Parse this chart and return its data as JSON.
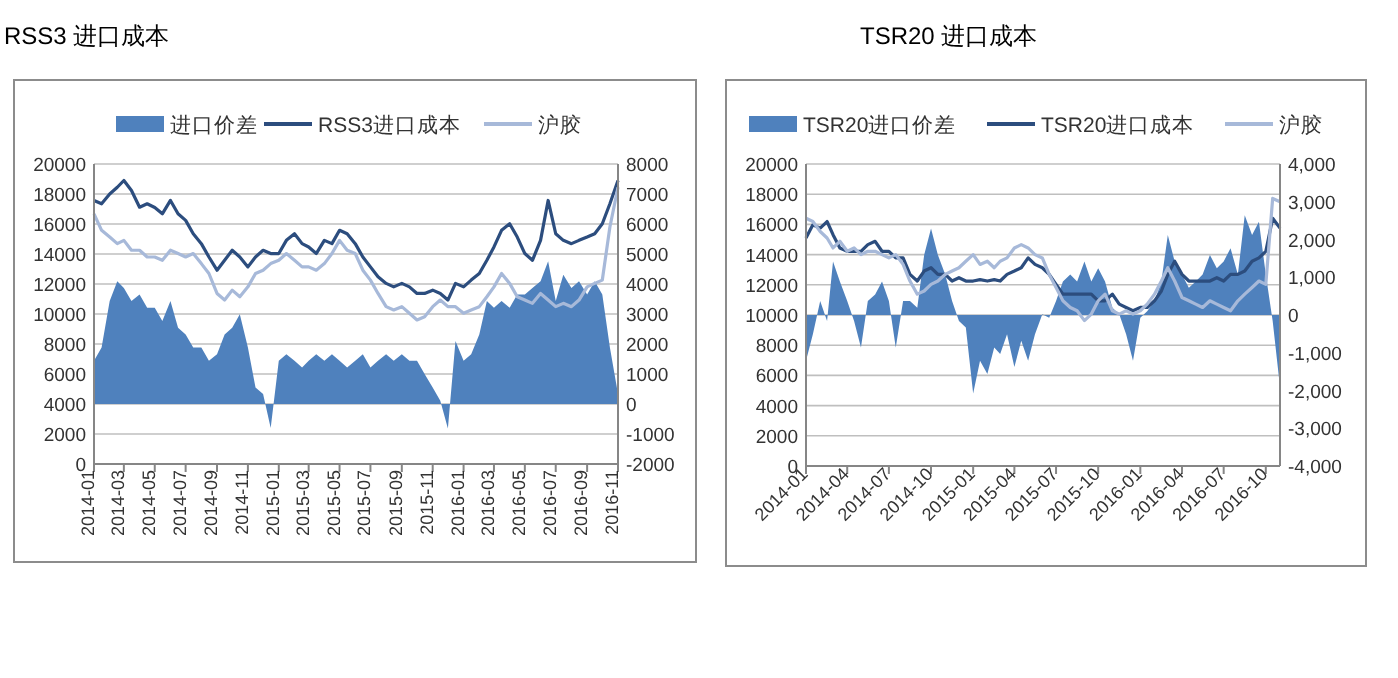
{
  "chart_data": [
    {
      "type": "line",
      "title": "RSS3 进口成本",
      "legend": "top",
      "grid": "y",
      "marker": "none",
      "line_style": "solid",
      "x": [
        "2014-01-01",
        "2014-01-16",
        "2014-02-01",
        "2014-02-16",
        "2014-03-01",
        "2014-03-16",
        "2014-04-01",
        "2014-04-16",
        "2014-05-01",
        "2014-05-16",
        "2014-06-01",
        "2014-06-16",
        "2014-07-01",
        "2014-07-16",
        "2014-08-01",
        "2014-08-16",
        "2014-09-01",
        "2014-09-16",
        "2014-10-01",
        "2014-10-16",
        "2014-11-01",
        "2014-11-16",
        "2014-12-01",
        "2014-12-16",
        "2015-01-01",
        "2015-01-16",
        "2015-02-01",
        "2015-02-16",
        "2015-03-01",
        "2015-03-16",
        "2015-04-01",
        "2015-04-16",
        "2015-05-01",
        "2015-05-16",
        "2015-06-01",
        "2015-06-16",
        "2015-07-01",
        "2015-07-16",
        "2015-08-01",
        "2015-08-16",
        "2015-09-01",
        "2015-09-16",
        "2015-10-01",
        "2015-10-16",
        "2015-11-01",
        "2015-11-16",
        "2015-12-01",
        "2015-12-16",
        "2016-01-01",
        "2016-01-16",
        "2016-02-01",
        "2016-02-16",
        "2016-03-01",
        "2016-03-16",
        "2016-04-01",
        "2016-04-16",
        "2016-05-01",
        "2016-05-16",
        "2016-06-01",
        "2016-06-16",
        "2016-07-01",
        "2016-07-16",
        "2016-08-01",
        "2016-08-16",
        "2016-09-01",
        "2016-09-16",
        "2016-10-01",
        "2016-10-16",
        "2016-11-01"
      ],
      "xlim": [
        "2014-01-01",
        "2016-11-01"
      ],
      "xticks": [
        "2014-01",
        "2014-03",
        "2014-05",
        "2014-07",
        "2014-09",
        "2014-11",
        "2015-01",
        "2015-03",
        "2015-05",
        "2015-07",
        "2015-09",
        "2015-11",
        "2016-01",
        "2016-03",
        "2016-05",
        "2016-07",
        "2016-09",
        "2016-11"
      ],
      "ylim": [
        0,
        20000
      ],
      "yticks": [
        0,
        2000,
        4000,
        6000,
        8000,
        10000,
        12000,
        14000,
        16000,
        18000,
        20000
      ],
      "y2lim": [
        -2000,
        8000
      ],
      "y2ticks": [
        -2000,
        -1000,
        0,
        1000,
        2000,
        3000,
        4000,
        5000,
        6000,
        7000,
        8000
      ],
      "series": [
        {
          "name": "进口价差",
          "type": "area",
          "axis": "y2",
          "color": "#4f81bd",
          "values": [
            1440,
            1880,
            3430,
            4090,
            3870,
            3430,
            3650,
            3210,
            3210,
            2770,
            3430,
            2540,
            2320,
            1880,
            1880,
            1440,
            1660,
            2320,
            2540,
            2990,
            1880,
            550,
            330,
            -800,
            1440,
            1660,
            1440,
            1220,
            1440,
            1660,
            1440,
            1660,
            1440,
            1220,
            1440,
            1660,
            1220,
            1440,
            1660,
            1440,
            1660,
            1440,
            1440,
            1000,
            550,
            110,
            -820,
            2100,
            1440,
            1660,
            2320,
            3430,
            3210,
            3430,
            3210,
            3650,
            3650,
            3870,
            4090,
            4760,
            3430,
            4310,
            3870,
            4090,
            3650,
            4090,
            3650,
            1880,
            330
          ]
        },
        {
          "name": "RSS3进口成本",
          "color": "#2c4d7e",
          "values": [
            17570,
            17350,
            18000,
            18450,
            18900,
            18230,
            17120,
            17350,
            17100,
            16680,
            17570,
            16680,
            16240,
            15350,
            14690,
            13800,
            12920,
            13580,
            14250,
            13800,
            13140,
            13800,
            14250,
            14030,
            14030,
            14910,
            15350,
            14690,
            14470,
            14030,
            14910,
            14690,
            15580,
            15350,
            14690,
            13800,
            13140,
            12480,
            12040,
            11810,
            12040,
            11810,
            11370,
            11370,
            11590,
            11370,
            10930,
            12040,
            11810,
            12260,
            12700,
            13580,
            14470,
            15580,
            16020,
            15130,
            14030,
            13580,
            14910,
            17570,
            15350,
            14910,
            14690,
            14910,
            15130,
            15350,
            16020,
            17350,
            18900
          ]
        },
        {
          "name": "沪胶",
          "color": "#a7b9d9",
          "values": [
            16680,
            15580,
            15130,
            14690,
            14910,
            14250,
            14250,
            13800,
            13800,
            13580,
            14250,
            14030,
            13800,
            14030,
            13360,
            12700,
            11370,
            10930,
            11590,
            11150,
            11810,
            12700,
            12920,
            13360,
            13580,
            14030,
            13580,
            13140,
            13140,
            12920,
            13360,
            14030,
            14910,
            14250,
            14030,
            12920,
            12260,
            11370,
            10490,
            10270,
            10490,
            10050,
            9600,
            9820,
            10490,
            10930,
            10490,
            10490,
            10050,
            10270,
            10490,
            11150,
            11810,
            12700,
            12040,
            11150,
            10930,
            10710,
            11370,
            10930,
            10490,
            10710,
            10490,
            10930,
            11810,
            12040,
            12260,
            15800,
            18450
          ]
        }
      ]
    },
    {
      "type": "line",
      "title": "TSR20 进口成本",
      "legend": "top",
      "grid": "y",
      "marker": "none",
      "line_style": "solid",
      "x": [
        "2014-01-01",
        "2014-01-16",
        "2014-02-01",
        "2014-02-16",
        "2014-03-01",
        "2014-03-16",
        "2014-04-01",
        "2014-04-16",
        "2014-05-01",
        "2014-05-16",
        "2014-06-01",
        "2014-06-16",
        "2014-07-01",
        "2014-07-16",
        "2014-08-01",
        "2014-08-16",
        "2014-09-01",
        "2014-09-16",
        "2014-10-01",
        "2014-10-16",
        "2014-11-01",
        "2014-11-16",
        "2014-12-01",
        "2014-12-16",
        "2015-01-01",
        "2015-01-16",
        "2015-02-01",
        "2015-02-16",
        "2015-03-01",
        "2015-03-16",
        "2015-04-01",
        "2015-04-16",
        "2015-05-01",
        "2015-05-16",
        "2015-06-01",
        "2015-06-16",
        "2015-07-01",
        "2015-07-16",
        "2015-08-01",
        "2015-08-16",
        "2015-09-01",
        "2015-09-16",
        "2015-10-01",
        "2015-10-16",
        "2015-11-01",
        "2015-11-16",
        "2015-12-01",
        "2015-12-16",
        "2016-01-01",
        "2016-01-16",
        "2016-02-01",
        "2016-02-16",
        "2016-03-01",
        "2016-03-16",
        "2016-04-01",
        "2016-04-16",
        "2016-05-01",
        "2016-05-16",
        "2016-06-01",
        "2016-06-16",
        "2016-07-01",
        "2016-07-16",
        "2016-08-01",
        "2016-08-16",
        "2016-09-01",
        "2016-09-16",
        "2016-10-01",
        "2016-10-16",
        "2016-11-01"
      ],
      "xlim": [
        "2014-01-01",
        "2016-11-01"
      ],
      "xticks": [
        "2014-01",
        "2014-04",
        "2014-07",
        "2014-10",
        "2015-01",
        "2015-04",
        "2015-07",
        "2015-10",
        "2016-01",
        "2016-04",
        "2016-07",
        "2016-10"
      ],
      "ylim": [
        0,
        20000
      ],
      "yticks": [
        0,
        2000,
        4000,
        6000,
        8000,
        10000,
        12000,
        14000,
        16000,
        18000,
        20000
      ],
      "y2lim": [
        -4000,
        4000
      ],
      "y2ticks": [
        {
          "value": -4000,
          "label": "-4,000"
        },
        {
          "value": -3000,
          "label": "-3,000"
        },
        {
          "value": -2000,
          "label": "-2,000"
        },
        {
          "value": -1000,
          "label": "-1,000"
        },
        0,
        {
          "value": 1000,
          "label": "1,000"
        },
        {
          "value": 2000,
          "label": "2,000"
        },
        {
          "value": 3000,
          "label": "3,000"
        },
        {
          "value": 4000,
          "label": "4,000"
        }
      ],
      "series": [
        {
          "name": "TSR20进口价差",
          "type": "area",
          "axis": "y2",
          "color": "#4f81bd",
          "values": [
            -1210,
            -510,
            370,
            -160,
            1420,
            890,
            370,
            -160,
            -860,
            370,
            540,
            890,
            370,
            -860,
            370,
            370,
            190,
            1590,
            2290,
            1590,
            1070,
            370,
            -160,
            -330,
            -2080,
            -1210,
            -1560,
            -860,
            -1030,
            -510,
            -1380,
            -680,
            -1210,
            -510,
            20,
            -70,
            370,
            890,
            1070,
            890,
            1420,
            890,
            1240,
            890,
            190,
            20,
            -510,
            -1210,
            -70,
            100,
            370,
            890,
            2120,
            1420,
            1070,
            720,
            890,
            1070,
            1590,
            1240,
            1420,
            1770,
            1070,
            2640,
            2120,
            2470,
            1070,
            -160,
            -1910
          ]
        },
        {
          "name": "TSR20进口成本",
          "color": "#2c4d7e",
          "values": [
            15100,
            15970,
            15750,
            16190,
            15320,
            14440,
            14220,
            14220,
            14220,
            14660,
            14880,
            14220,
            14220,
            13780,
            13780,
            12690,
            12250,
            12910,
            13130,
            12690,
            12690,
            12250,
            12470,
            12250,
            12250,
            12340,
            12250,
            12340,
            12250,
            12690,
            12910,
            13130,
            13780,
            13350,
            13130,
            12690,
            12030,
            11380,
            11380,
            11380,
            11380,
            11380,
            10940,
            10940,
            11380,
            10720,
            10500,
            10280,
            10500,
            10500,
            10940,
            11590,
            12690,
            13560,
            12690,
            12250,
            12250,
            12250,
            12250,
            12470,
            12250,
            12690,
            12690,
            12910,
            13560,
            13780,
            14220,
            16410,
            15750
          ]
        },
        {
          "name": "沪胶",
          "color": "#a7b9d9",
          "values": [
            16410,
            16190,
            15530,
            15100,
            14440,
            14880,
            14220,
            14440,
            14000,
            14220,
            14220,
            14000,
            13780,
            14000,
            13350,
            12250,
            11380,
            11590,
            12030,
            12250,
            12690,
            12910,
            13130,
            13560,
            14000,
            13350,
            13560,
            13130,
            13560,
            13780,
            14440,
            14660,
            14440,
            14000,
            13780,
            12690,
            11820,
            10940,
            10500,
            10280,
            9630,
            10060,
            10940,
            11380,
            10280,
            10060,
            10280,
            10060,
            10280,
            10720,
            11380,
            12250,
            13130,
            12250,
            11160,
            10940,
            10720,
            10500,
            10940,
            10720,
            10500,
            10280,
            10940,
            11380,
            11820,
            12250,
            12030,
            17720,
            17500
          ]
        }
      ]
    }
  ]
}
